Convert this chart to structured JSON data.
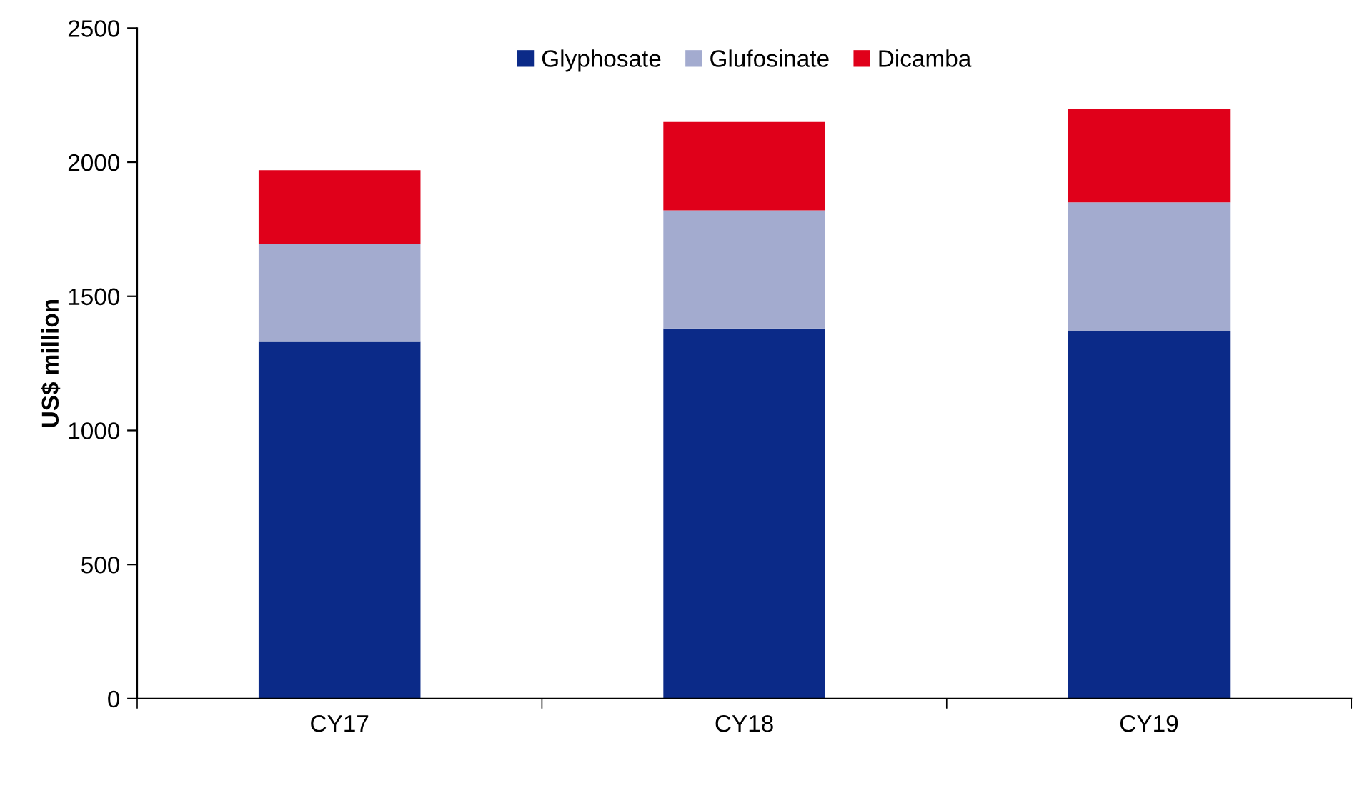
{
  "chart_data": {
    "type": "bar",
    "stacked": true,
    "ylabel": "US$ million",
    "categories": [
      "CY17",
      "CY18",
      "CY19"
    ],
    "series": [
      {
        "name": "Glyphosate",
        "color": "#0b2a88",
        "values": [
          1330,
          1380,
          1370
        ]
      },
      {
        "name": "Glufosinate",
        "color": "#a3abcf",
        "values": [
          365,
          440,
          480
        ]
      },
      {
        "name": "Dicamba",
        "color": "#e0001a",
        "values": [
          275,
          330,
          350
        ]
      }
    ],
    "ylim": [
      0,
      2500
    ],
    "yticks": [
      0,
      500,
      1000,
      1500,
      2000,
      2500
    ],
    "grid": false,
    "legend": "top"
  }
}
